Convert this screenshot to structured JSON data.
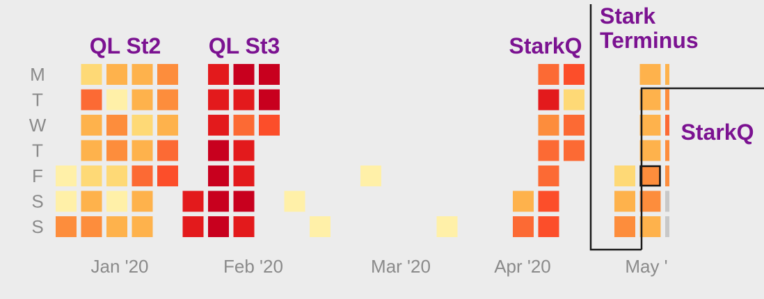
{
  "chart_data": {
    "type": "heatmap",
    "title": "",
    "row_labels": [
      "M",
      "T",
      "W",
      "T",
      "F",
      "S",
      "S"
    ],
    "x_labels": [
      {
        "label": "Jan '20",
        "col": 2
      },
      {
        "label": "Feb '20",
        "col": 7
      },
      {
        "label": "Mar '20",
        "col": 13
      },
      {
        "label": "Apr '20",
        "col": 18
      },
      {
        "label": "May '",
        "col": 23
      }
    ],
    "annotations": [
      {
        "lines": [
          "QL St2"
        ],
        "col": 2
      },
      {
        "lines": [
          "QL St3"
        ],
        "col": 7
      },
      {
        "lines": [
          "StarkQ"
        ],
        "col": 19
      },
      {
        "lines": [
          "Stark",
          "Terminus"
        ],
        "col": 22
      },
      {
        "lines": [
          "StarkQ"
        ],
        "col": 24
      }
    ],
    "color_scale": [
      "#ececec",
      "#fff0a8",
      "#fed976",
      "#feb24c",
      "#fd8d3c",
      "#fc6a34",
      "#fc4e2a",
      "#e31a1c",
      "#c8001e",
      "#c8c8c8"
    ],
    "highlight": {
      "col": 23,
      "row": 4
    },
    "levels": [
      [
        0,
        2,
        3,
        3,
        4,
        0,
        7,
        8,
        8,
        0,
        0,
        0,
        0,
        0,
        0,
        0,
        0,
        0,
        0,
        5,
        6,
        0,
        0,
        3,
        3
      ],
      [
        0,
        5,
        1,
        3,
        4,
        0,
        7,
        7,
        8,
        0,
        0,
        0,
        0,
        0,
        0,
        0,
        0,
        0,
        0,
        7,
        2,
        0,
        0,
        3,
        4
      ],
      [
        0,
        3,
        4,
        2,
        3,
        0,
        7,
        5,
        6,
        0,
        0,
        0,
        0,
        0,
        0,
        0,
        0,
        0,
        0,
        4,
        5,
        0,
        0,
        3,
        5
      ],
      [
        0,
        3,
        4,
        3,
        5,
        0,
        8,
        7,
        0,
        0,
        0,
        0,
        0,
        0,
        0,
        0,
        0,
        0,
        0,
        5,
        5,
        0,
        0,
        3,
        4
      ],
      [
        1,
        2,
        2,
        5,
        6,
        0,
        8,
        7,
        0,
        0,
        0,
        0,
        1,
        0,
        0,
        0,
        0,
        0,
        0,
        5,
        0,
        0,
        2,
        4,
        4
      ],
      [
        1,
        3,
        1,
        3,
        0,
        7,
        8,
        8,
        0,
        1,
        0,
        0,
        0,
        0,
        0,
        0,
        0,
        0,
        3,
        6,
        0,
        0,
        3,
        4,
        9
      ],
      [
        4,
        4,
        3,
        3,
        0,
        7,
        8,
        7,
        0,
        0,
        1,
        0,
        0,
        0,
        0,
        1,
        0,
        0,
        5,
        6,
        0,
        0,
        4,
        3,
        9
      ]
    ]
  }
}
